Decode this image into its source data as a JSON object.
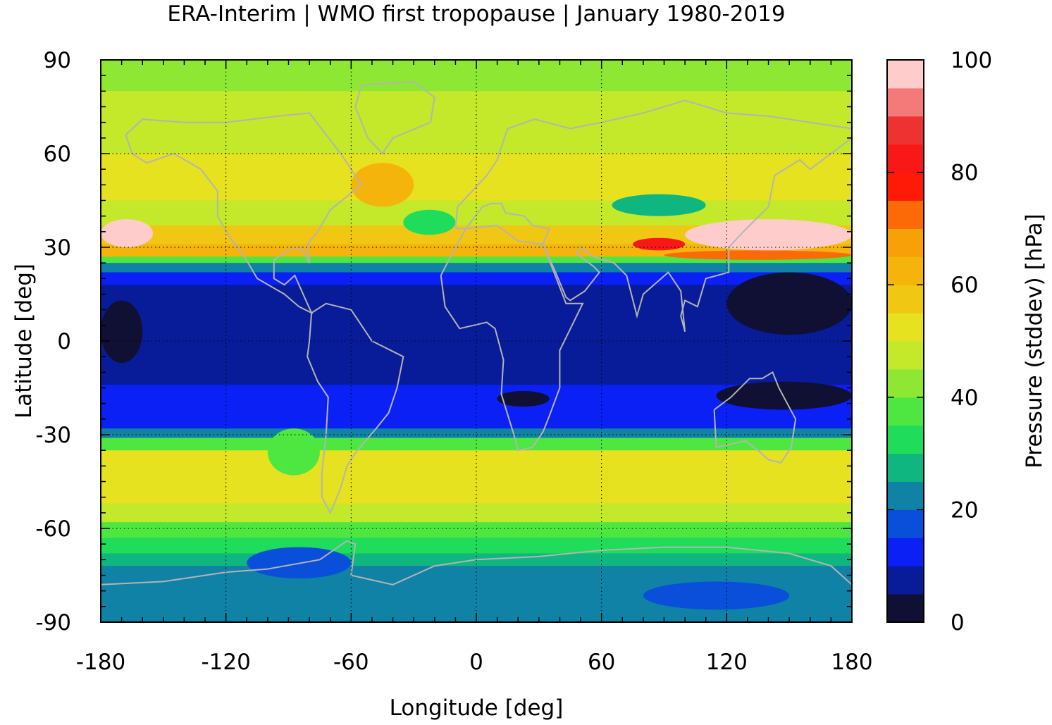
{
  "chart_data": {
    "type": "heatmap",
    "title": "ERA-Interim | WMO first tropopause | January 1980-2019",
    "xlabel": "Longitude [deg]",
    "ylabel": "Latitude [deg]",
    "colorbar_label": "Pressure (stddev) [hPa]",
    "xlim": [
      -180,
      180
    ],
    "ylim": [
      -90,
      90
    ],
    "x_ticks": [
      -180,
      -120,
      -60,
      0,
      60,
      120,
      180
    ],
    "y_ticks": [
      90,
      60,
      30,
      0,
      -30,
      -60,
      -90
    ],
    "x_tick_labels": [
      "-180",
      "-120",
      "-60",
      "0",
      "60",
      "120",
      "180"
    ],
    "y_tick_labels": [
      "90",
      "60",
      "30",
      "0",
      "-30",
      "-60",
      "-90"
    ],
    "colorbar_range": [
      0,
      100
    ],
    "colorbar_ticks": [
      100,
      80,
      60,
      40,
      20,
      0
    ],
    "colorbar_tick_labels": [
      "100",
      "80",
      "60",
      "40",
      "20",
      "0"
    ],
    "grid": true,
    "coastlines_color": "#b4b4b4",
    "colorscale": [
      {
        "from": 0,
        "to": 5,
        "color": "#0f1033"
      },
      {
        "from": 5,
        "to": 10,
        "color": "#081c9a"
      },
      {
        "from": 10,
        "to": 15,
        "color": "#0a20f4"
      },
      {
        "from": 15,
        "to": 20,
        "color": "#0a4fd9"
      },
      {
        "from": 20,
        "to": 25,
        "color": "#0f82a6"
      },
      {
        "from": 25,
        "to": 30,
        "color": "#10b67f"
      },
      {
        "from": 30,
        "to": 35,
        "color": "#1fdc5a"
      },
      {
        "from": 35,
        "to": 40,
        "color": "#4ee640"
      },
      {
        "from": 40,
        "to": 45,
        "color": "#8ee833"
      },
      {
        "from": 45,
        "to": 50,
        "color": "#c4e82a"
      },
      {
        "from": 50,
        "to": 55,
        "color": "#e6e220"
      },
      {
        "from": 55,
        "to": 60,
        "color": "#f0c712"
      },
      {
        "from": 60,
        "to": 65,
        "color": "#f4b40c"
      },
      {
        "from": 65,
        "to": 70,
        "color": "#f8a008"
      },
      {
        "from": 70,
        "to": 75,
        "color": "#fc6a08"
      },
      {
        "from": 75,
        "to": 80,
        "color": "#ff1a08"
      },
      {
        "from": 80,
        "to": 85,
        "color": "#f81818"
      },
      {
        "from": 85,
        "to": 90,
        "color": "#ee3232"
      },
      {
        "from": 90,
        "to": 95,
        "color": "#f47a7a"
      },
      {
        "from": 95,
        "to": 100,
        "color": "#ffcccc"
      }
    ],
    "zonal_bands": [
      {
        "lat": [
          80,
          90
        ],
        "value": 42
      },
      {
        "lat": [
          60,
          80
        ],
        "value": 47
      },
      {
        "lat": [
          45,
          60
        ],
        "value": 50
      },
      {
        "lat": [
          37,
          45
        ],
        "value": 46
      },
      {
        "lat": [
          31,
          37
        ],
        "value": 55
      },
      {
        "lat": [
          27,
          31
        ],
        "value": 63
      },
      {
        "lat": [
          25,
          27
        ],
        "value": 38
      },
      {
        "lat": [
          22,
          25
        ],
        "value": 23
      },
      {
        "lat": [
          18,
          22
        ],
        "value": 12
      },
      {
        "lat": [
          -14,
          18
        ],
        "value": 7
      },
      {
        "lat": [
          -22,
          -14
        ],
        "value": 12
      },
      {
        "lat": [
          -28,
          -22
        ],
        "value": 11
      },
      {
        "lat": [
          -31,
          -28
        ],
        "value": 20
      },
      {
        "lat": [
          -35,
          -31
        ],
        "value": 37
      },
      {
        "lat": [
          -52,
          -35
        ],
        "value": 51
      },
      {
        "lat": [
          -58,
          -52
        ],
        "value": 45
      },
      {
        "lat": [
          -63,
          -58
        ],
        "value": 38
      },
      {
        "lat": [
          -68,
          -63
        ],
        "value": 33
      },
      {
        "lat": [
          -72,
          -68
        ],
        "value": 28
      },
      {
        "lat": [
          -90,
          -72
        ],
        "value": 22
      }
    ],
    "features": [
      {
        "lon": [
          -180,
          -155
        ],
        "lat": [
          30,
          39
        ],
        "value": 97
      },
      {
        "lon": [
          75,
          100
        ],
        "lat": [
          29,
          33
        ],
        "value": 82
      },
      {
        "lon": [
          100,
          180
        ],
        "lat": [
          29,
          39
        ],
        "value": 97
      },
      {
        "lon": [
          90,
          180
        ],
        "lat": [
          26,
          29
        ],
        "value": 72
      },
      {
        "lon": [
          -60,
          -30
        ],
        "lat": [
          43,
          57
        ],
        "value": 62
      },
      {
        "lon": [
          -35,
          -10
        ],
        "lat": [
          34,
          42
        ],
        "value": 34
      },
      {
        "lon": [
          65,
          110
        ],
        "lat": [
          40,
          47
        ],
        "value": 26
      },
      {
        "lon": [
          120,
          180
        ],
        "lat": [
          2,
          22
        ],
        "value": 3
      },
      {
        "lon": [
          -180,
          -160
        ],
        "lat": [
          -7,
          13
        ],
        "value": 3
      },
      {
        "lon": [
          10,
          35
        ],
        "lat": [
          -21,
          -16
        ],
        "value": 3
      },
      {
        "lon": [
          115,
          180
        ],
        "lat": [
          -22,
          -13
        ],
        "value": 3
      },
      {
        "lon": [
          -100,
          -75
        ],
        "lat": [
          -43,
          -28
        ],
        "value": 37
      },
      {
        "lon": [
          -55,
          180
        ],
        "lat": [
          -52,
          -40
        ],
        "value": 52
      },
      {
        "lon": [
          -110,
          -60
        ],
        "lat": [
          -76,
          -66
        ],
        "value": 18
      },
      {
        "lon": [
          80,
          150
        ],
        "lat": [
          -86,
          -77
        ],
        "value": 16
      }
    ]
  }
}
